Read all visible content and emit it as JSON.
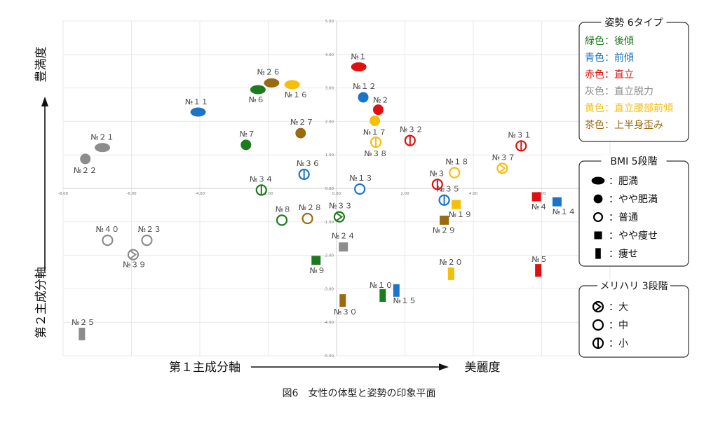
{
  "chart_data": {
    "type": "scatter",
    "title": "",
    "caption": "図6　女性の体型と姿勢の印象平面",
    "xlabel": "第１主成分軸",
    "x_positive_label": "美麗度",
    "ylabel": "第２主成分軸",
    "y_positive_label": "豊満度",
    "xlim": [
      -8,
      8
    ],
    "ylim": [
      -5,
      5
    ],
    "x_ticks": [
      "-8.00",
      "-6.00",
      "-4.00",
      "-2.00",
      "0.00",
      "2.00",
      "4.00",
      "6.00"
    ],
    "y_ticks": [
      "5.00",
      "4.00",
      "3.00",
      "2.00",
      "1.00",
      "0.00",
      "-1.00",
      "-2.00",
      "-3.00",
      "-4.00",
      "-5.00"
    ],
    "grid": true,
    "legend_placement": "right",
    "colors": {
      "green": "#1e7a1e",
      "blue": "#1a74c8",
      "red": "#e01010",
      "gray": "#8c8c8c",
      "yellow": "#f5be0a",
      "brown": "#9a6a10"
    },
    "legends": {
      "posture": {
        "title": "姿勢 6タイプ",
        "items": [
          {
            "label": "緑色：後傾",
            "color": "green"
          },
          {
            "label": "青色：前傾",
            "color": "blue"
          },
          {
            "label": "赤色：直立",
            "color": "red"
          },
          {
            "label": "灰色：直立脱力",
            "color": "gray"
          },
          {
            "label": "黄色：直立腰部前傾",
            "color": "yellow"
          },
          {
            "label": "茶色：上半身歪み",
            "color": "brown"
          }
        ]
      },
      "bmi": {
        "title": "BMI 5段階",
        "items": [
          {
            "label": "：肥満",
            "shape": "ellipse"
          },
          {
            "label": "：やや肥満",
            "shape": "dot"
          },
          {
            "label": "：普通",
            "shape": "ring"
          },
          {
            "label": "：やや痩せ",
            "shape": "square"
          },
          {
            "label": "：痩せ",
            "shape": "bar"
          }
        ]
      },
      "meri": {
        "title": "メリハリ 3段階",
        "items": [
          {
            "label": "：大",
            "mark": "chevron"
          },
          {
            "label": "：中",
            "mark": "none"
          },
          {
            "label": "：小",
            "mark": "vline"
          }
        ]
      }
    },
    "points": [
      {
        "label": "№１",
        "x": 0.65,
        "y": 3.63,
        "shape": "ellipse",
        "color": "red",
        "mark": "none"
      },
      {
        "label": "№２",
        "x": 1.22,
        "y": 2.35,
        "shape": "dot",
        "color": "red",
        "mark": "none"
      },
      {
        "label": "№３",
        "x": 2.95,
        "y": 0.12,
        "shape": "ring",
        "color": "red",
        "mark": "vline"
      },
      {
        "label": "№４",
        "x": 5.85,
        "y": -0.25,
        "shape": "square",
        "color": "red",
        "mark": "none"
      },
      {
        "label": "№５",
        "x": 5.9,
        "y": -2.45,
        "shape": "bar",
        "color": "red",
        "mark": "none"
      },
      {
        "label": "№６",
        "x": -2.3,
        "y": 2.95,
        "shape": "ellipse",
        "color": "green",
        "mark": "none"
      },
      {
        "label": "№７",
        "x": -2.65,
        "y": 1.3,
        "shape": "dot",
        "color": "green",
        "mark": "none"
      },
      {
        "label": "№８",
        "x": -1.6,
        "y": -0.95,
        "shape": "ring",
        "color": "green",
        "mark": "none"
      },
      {
        "label": "№９",
        "x": -0.6,
        "y": -2.15,
        "shape": "square",
        "color": "green",
        "mark": "none"
      },
      {
        "label": "№１０",
        "x": 1.35,
        "y": -3.2,
        "shape": "bar",
        "color": "green",
        "mark": "none"
      },
      {
        "label": "№１１",
        "x": -4.05,
        "y": 2.28,
        "shape": "ellipse",
        "color": "blue",
        "mark": "none"
      },
      {
        "label": "№１２",
        "x": 0.78,
        "y": 2.72,
        "shape": "dot",
        "color": "blue",
        "mark": "none"
      },
      {
        "label": "№１３",
        "x": 0.68,
        "y": -0.02,
        "shape": "ring",
        "color": "blue",
        "mark": "none"
      },
      {
        "label": "№１４",
        "x": 6.45,
        "y": -0.4,
        "shape": "square",
        "color": "blue",
        "mark": "none"
      },
      {
        "label": "№１５",
        "x": 1.75,
        "y": -3.05,
        "shape": "bar",
        "color": "blue",
        "mark": "none"
      },
      {
        "label": "№１６",
        "x": -1.3,
        "y": 3.1,
        "shape": "ellipse",
        "color": "yellow",
        "mark": "none"
      },
      {
        "label": "№１７",
        "x": 1.12,
        "y": 2.02,
        "shape": "dot",
        "color": "yellow",
        "mark": "none"
      },
      {
        "label": "№１８",
        "x": 3.45,
        "y": 0.47,
        "shape": "ring",
        "color": "yellow",
        "mark": "none"
      },
      {
        "label": "№１９",
        "x": 3.5,
        "y": -0.48,
        "shape": "square",
        "color": "yellow",
        "mark": "none"
      },
      {
        "label": "№２０",
        "x": 3.35,
        "y": -2.55,
        "shape": "bar",
        "color": "yellow",
        "mark": "none"
      },
      {
        "label": "№２１",
        "x": -6.85,
        "y": 1.22,
        "shape": "ellipse",
        "color": "gray",
        "mark": "none"
      },
      {
        "label": "№２２",
        "x": -7.35,
        "y": 0.88,
        "shape": "dot",
        "color": "gray",
        "mark": "none"
      },
      {
        "label": "№２３",
        "x": -5.55,
        "y": -1.55,
        "shape": "ring",
        "color": "gray",
        "mark": "none"
      },
      {
        "label": "№２４",
        "x": 0.2,
        "y": -1.75,
        "shape": "square",
        "color": "gray",
        "mark": "none"
      },
      {
        "label": "№２５",
        "x": -7.45,
        "y": -4.35,
        "shape": "bar",
        "color": "gray",
        "mark": "none"
      },
      {
        "label": "№２６",
        "x": -1.9,
        "y": 3.15,
        "shape": "ellipse",
        "color": "brown",
        "mark": "none"
      },
      {
        "label": "№２７",
        "x": -1.05,
        "y": 1.65,
        "shape": "dot",
        "color": "brown",
        "mark": "none"
      },
      {
        "label": "№２８",
        "x": -0.85,
        "y": -0.9,
        "shape": "ring",
        "color": "brown",
        "mark": "none"
      },
      {
        "label": "№２９",
        "x": 3.15,
        "y": -0.95,
        "shape": "square",
        "color": "brown",
        "mark": "none"
      },
      {
        "label": "№３０",
        "x": 0.18,
        "y": -3.35,
        "shape": "bar",
        "color": "brown",
        "mark": "none"
      },
      {
        "label": "№３１",
        "x": 5.4,
        "y": 1.27,
        "shape": "ring",
        "color": "red",
        "mark": "vline"
      },
      {
        "label": "№３２",
        "x": 2.15,
        "y": 1.43,
        "shape": "ring",
        "color": "red",
        "mark": "vline"
      },
      {
        "label": "№３３",
        "x": 0.08,
        "y": -0.85,
        "shape": "ring",
        "color": "green",
        "mark": "chevron"
      },
      {
        "label": "№３４",
        "x": -2.2,
        "y": -0.05,
        "shape": "ring",
        "color": "green",
        "mark": "vline"
      },
      {
        "label": "№３５",
        "x": 3.15,
        "y": -0.35,
        "shape": "ring",
        "color": "blue",
        "mark": "vline"
      },
      {
        "label": "№３６",
        "x": -0.95,
        "y": 0.42,
        "shape": "ring",
        "color": "blue",
        "mark": "vline"
      },
      {
        "label": "№３７",
        "x": 4.85,
        "y": 0.6,
        "shape": "ring",
        "color": "yellow",
        "mark": "chevron"
      },
      {
        "label": "№３８",
        "x": 1.15,
        "y": 1.38,
        "shape": "ring",
        "color": "yellow",
        "mark": "vline"
      },
      {
        "label": "№３９",
        "x": -5.95,
        "y": -1.98,
        "shape": "ring",
        "color": "gray",
        "mark": "chevron"
      },
      {
        "label": "№４０",
        "x": -6.7,
        "y": -1.55,
        "shape": "ring",
        "color": "gray",
        "mark": "none"
      }
    ]
  }
}
